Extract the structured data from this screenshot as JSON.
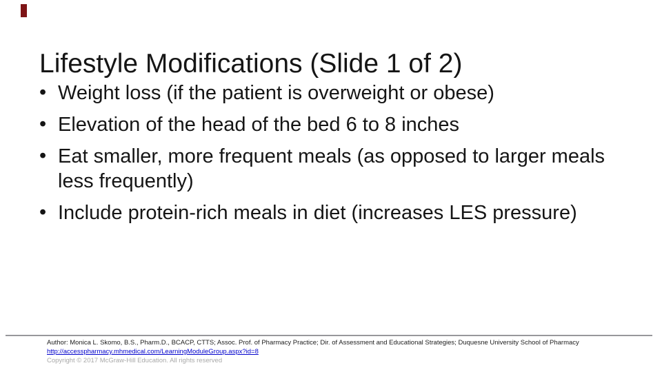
{
  "slide": {
    "accent_color": "#7E1416",
    "title": "Lifestyle Modifications (Slide 1 of 2)",
    "bullets": [
      "Weight loss (if the patient is overweight or obese)",
      "Elevation of the head of the bed 6 to 8 inches",
      "Eat smaller, more frequent meals (as opposed to larger meals less frequently)",
      "Include protein-rich meals in diet (increases LES pressure)"
    ],
    "footer": {
      "author_line": "Author: Monica L. Skomo, B.S., Pharm.D., BCACP, CTTS; Assoc. Prof. of Pharmacy Practice; Dir. of Assessment and Educational Strategies; Duquesne University School of Pharmacy",
      "link": "http://accesspharmacy.mhmedical.com/LearningModuleGroup.aspx?id=8",
      "copyright": "Copyright © 2017 McGraw-Hill Education. All rights reserved",
      "link_color": "#0000CC",
      "copyright_color": "#A8A8A8",
      "divider_color": "#97979B"
    }
  }
}
